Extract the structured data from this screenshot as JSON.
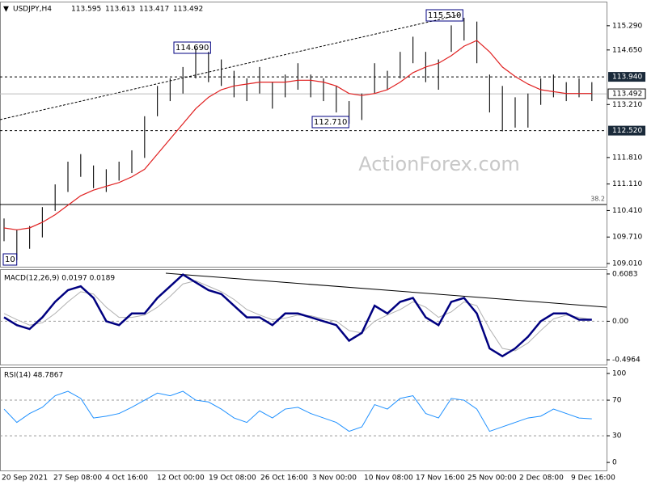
{
  "chart_data": [
    {
      "type": "hilo",
      "symbol": "USDJPY,H4",
      "header_values": [
        113.595,
        113.613,
        113.417,
        113.492
      ],
      "watermark": "ActionForex.com",
      "x_labels": [
        "20 Sep 2021",
        "27 Sep 08:00",
        "4 Oct 16:00",
        "12 Oct 00:00",
        "19 Oct 08:00",
        "26 Oct 16:00",
        "3 Nov 00:00",
        "10 Nov 08:00",
        "17 Nov 16:00",
        "25 Nov 00:00",
        "2 Dec 08:00",
        "9 Dec 16:00"
      ],
      "series": [
        {
          "name": "High",
          "color": "#1a1a1a",
          "values": [
            110.2,
            109.9,
            110.0,
            110.5,
            111.1,
            111.7,
            111.9,
            111.6,
            111.5,
            111.7,
            112.0,
            112.9,
            113.7,
            113.9,
            114.2,
            114.7,
            114.6,
            114.4,
            114.1,
            113.9,
            114.2,
            113.8,
            114.0,
            114.3,
            114.0,
            113.9,
            113.7,
            113.3,
            113.5,
            114.3,
            114.1,
            114.6,
            115.0,
            114.6,
            114.4,
            115.3,
            115.5,
            115.4,
            114.0,
            113.7,
            113.4,
            113.5,
            113.9,
            114.0,
            113.8,
            113.9,
            113.8
          ]
        },
        {
          "name": "Low",
          "color": "#1a1a1a",
          "values": [
            109.6,
            109.1,
            109.4,
            109.7,
            110.4,
            110.9,
            111.3,
            111.0,
            110.9,
            111.2,
            111.4,
            111.8,
            112.9,
            113.3,
            113.5,
            113.9,
            113.8,
            113.7,
            113.4,
            113.3,
            113.5,
            113.1,
            113.4,
            113.6,
            113.4,
            113.3,
            113.0,
            112.7,
            112.8,
            113.5,
            113.6,
            113.9,
            114.3,
            113.8,
            113.6,
            114.6,
            114.9,
            114.3,
            113.0,
            112.5,
            112.6,
            112.6,
            113.2,
            113.4,
            113.3,
            113.4,
            113.3
          ]
        },
        {
          "name": "MA",
          "color": "#e02020",
          "values": [
            109.95,
            109.9,
            109.95,
            110.1,
            110.3,
            110.55,
            110.8,
            110.95,
            111.05,
            111.15,
            111.3,
            111.5,
            111.9,
            112.3,
            112.7,
            113.1,
            113.4,
            113.6,
            113.7,
            113.75,
            113.8,
            113.8,
            113.8,
            113.85,
            113.85,
            113.8,
            113.7,
            113.5,
            113.45,
            113.5,
            113.6,
            113.8,
            114.05,
            114.2,
            114.3,
            114.5,
            114.75,
            114.9,
            114.6,
            114.2,
            113.95,
            113.75,
            113.6,
            113.55,
            113.5,
            113.5,
            113.5
          ]
        }
      ],
      "levels": [
        {
          "value": 113.94,
          "label": "113.940"
        },
        {
          "value": 112.52,
          "label": "112.520"
        }
      ],
      "current": {
        "value": 113.492,
        "label": "113.492"
      },
      "fib": {
        "value": 110.57,
        "label": "38.2"
      },
      "annotations": [
        "114.690",
        "115.510",
        "112.710",
        "10"
      ],
      "ylim": [
        108.925,
        115.927
      ],
      "yticks": [
        {
          "value": 115.29,
          "label": "115.290"
        },
        {
          "value": 114.65,
          "label": "114.650"
        },
        {
          "value": 113.21,
          "label": "113.210"
        },
        {
          "value": 111.81,
          "label": "111.810"
        },
        {
          "value": 111.11,
          "label": "111.110"
        },
        {
          "value": 110.41,
          "label": "110.410"
        },
        {
          "value": 109.71,
          "label": "109.710"
        },
        {
          "value": 109.01,
          "label": "109.010"
        }
      ]
    },
    {
      "type": "macd",
      "title": "MACD(12,26,9) 0.0197 0.0189",
      "series": [
        {
          "name": "MACD",
          "color": "#000080",
          "values": [
            0.05,
            -0.05,
            -0.1,
            0.05,
            0.25,
            0.4,
            0.45,
            0.3,
            0.0,
            -0.05,
            0.1,
            0.1,
            0.3,
            0.45,
            0.6,
            0.5,
            0.4,
            0.35,
            0.2,
            0.05,
            0.05,
            -0.05,
            0.1,
            0.1,
            0.05,
            0.0,
            -0.05,
            -0.25,
            -0.15,
            0.2,
            0.1,
            0.25,
            0.3,
            0.05,
            -0.05,
            0.25,
            0.3,
            0.1,
            -0.35,
            -0.45,
            -0.35,
            -0.2,
            0.0,
            0.1,
            0.1,
            0.02,
            0.02
          ]
        },
        {
          "name": "Signal",
          "color": "#b0b0b0",
          "values": [
            0.1,
            0.02,
            -0.05,
            -0.02,
            0.1,
            0.25,
            0.38,
            0.35,
            0.18,
            0.05,
            0.05,
            0.08,
            0.18,
            0.32,
            0.48,
            0.52,
            0.45,
            0.38,
            0.28,
            0.15,
            0.08,
            0.02,
            0.04,
            0.08,
            0.07,
            0.03,
            0.0,
            -0.12,
            -0.15,
            0.0,
            0.08,
            0.15,
            0.25,
            0.18,
            0.05,
            0.12,
            0.25,
            0.2,
            -0.1,
            -0.35,
            -0.38,
            -0.28,
            -0.12,
            0.03,
            0.08,
            0.05,
            0.02
          ]
        }
      ],
      "ylim": [
        -0.568,
        0.67
      ],
      "yticks": [
        0.6083,
        {
          "value": 0,
          "label": "0.00"
        },
        -0.4964
      ]
    },
    {
      "type": "rsi",
      "title": "RSI(14) 48.7867",
      "series": [
        {
          "name": "RSI",
          "color": "#1e90ff",
          "values": [
            60,
            45,
            55,
            62,
            75,
            80,
            72,
            50,
            52,
            55,
            62,
            70,
            78,
            75,
            80,
            70,
            68,
            60,
            50,
            45,
            58,
            50,
            60,
            62,
            55,
            50,
            45,
            35,
            40,
            65,
            60,
            72,
            75,
            55,
            50,
            72,
            70,
            60,
            35,
            40,
            45,
            50,
            52,
            60,
            55,
            50,
            49
          ]
        }
      ],
      "ylim": [
        -9,
        106.4
      ],
      "yticks": [
        100,
        70,
        30,
        0
      ]
    }
  ]
}
